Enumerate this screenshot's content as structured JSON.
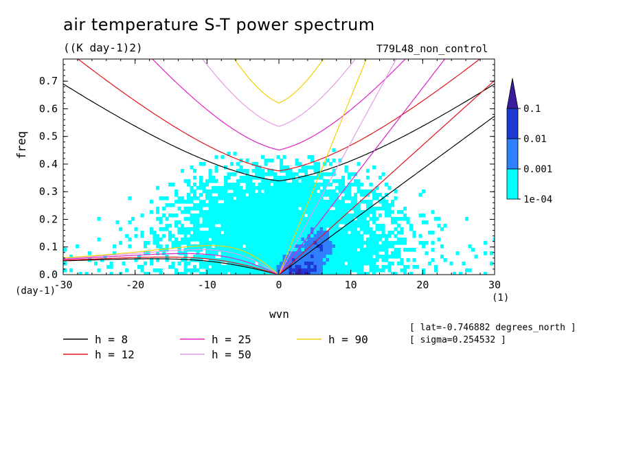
{
  "chart_data": {
    "type": "contour",
    "title": "air temperature S-T power spectrum",
    "subtitle": "((K day-1)2)",
    "run_label": "T79L48_non_control",
    "xlabel": "wvn",
    "ylabel": "freq",
    "x_unit": "(1)",
    "y_unit": "(day-1)",
    "xlim": [
      -30,
      30
    ],
    "ylim": [
      0,
      0.78
    ],
    "x_ticks": [
      -30,
      -20,
      -10,
      0,
      10,
      20,
      30
    ],
    "x_tick_labels": [
      "-30",
      "-20",
      "-10",
      "0",
      "10",
      "20",
      "30"
    ],
    "y_ticks": [
      0,
      0.1,
      0.2,
      0.3,
      0.4,
      0.5,
      0.6,
      0.7
    ],
    "y_tick_labels": [
      "0.0",
      "0.1",
      "0.2",
      "0.3",
      "0.4",
      "0.5",
      "0.6",
      "0.7"
    ],
    "colorbar": {
      "levels": [
        "1e-04",
        "0.001",
        "0.01",
        "0.1"
      ],
      "colors": [
        "#00ffff",
        "#2f7fff",
        "#1c3ad6",
        "#3a1ba0"
      ]
    },
    "dispersion_curves": [
      {
        "name": "h = 8",
        "h": 8,
        "color": "#000000"
      },
      {
        "name": "h = 12",
        "h": 12,
        "color": "#e0101a"
      },
      {
        "name": "h = 25",
        "h": 25,
        "color": "#e020c8"
      },
      {
        "name": "h = 50",
        "h": 50,
        "color": "#e39ae3"
      },
      {
        "name": "h = 90",
        "h": 90,
        "color": "#f2d000"
      }
    ],
    "info": [
      "[ lat=-0.746882 degrees_north ]",
      "[ sigma=0.254532 ]"
    ]
  }
}
